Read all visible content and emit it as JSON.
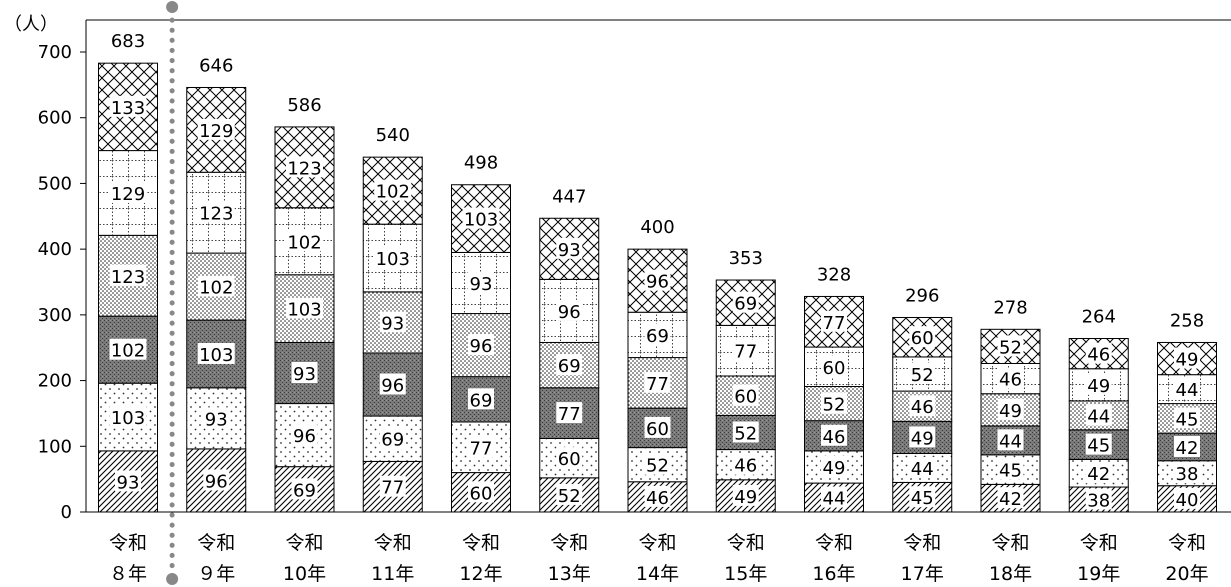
{
  "chart_data": {
    "type": "bar",
    "stacked": true,
    "unit_label": "（人）",
    "ylim": [
      0,
      700
    ],
    "yticks": [
      0,
      100,
      200,
      300,
      400,
      500,
      600,
      700
    ],
    "categories": [
      [
        "令和",
        "８年"
      ],
      [
        "令和",
        "９年"
      ],
      [
        "令和",
        "10年"
      ],
      [
        "令和",
        "11年"
      ],
      [
        "令和",
        "12年"
      ],
      [
        "令和",
        "13年"
      ],
      [
        "令和",
        "14年"
      ],
      [
        "令和",
        "15年"
      ],
      [
        "令和",
        "16年"
      ],
      [
        "令和",
        "17年"
      ],
      [
        "令和",
        "18年"
      ],
      [
        "令和",
        "19年"
      ],
      [
        "令和",
        "20年"
      ]
    ],
    "totals": [
      683,
      646,
      586,
      540,
      498,
      447,
      400,
      353,
      328,
      296,
      278,
      264,
      258
    ],
    "series": [
      {
        "pattern": "diagonal",
        "values": [
          93,
          96,
          69,
          77,
          60,
          52,
          46,
          49,
          44,
          45,
          42,
          38,
          40
        ]
      },
      {
        "pattern": "sparse-dots",
        "values": [
          103,
          93,
          96,
          69,
          77,
          60,
          52,
          46,
          49,
          44,
          45,
          42,
          38
        ]
      },
      {
        "pattern": "dark-dense",
        "values": [
          102,
          103,
          93,
          96,
          69,
          77,
          60,
          52,
          46,
          49,
          44,
          45,
          42
        ]
      },
      {
        "pattern": "dense-dots",
        "values": [
          123,
          102,
          103,
          93,
          96,
          69,
          77,
          60,
          52,
          46,
          49,
          44,
          45
        ]
      },
      {
        "pattern": "dotted-grid",
        "values": [
          129,
          123,
          102,
          103,
          93,
          96,
          69,
          77,
          60,
          52,
          46,
          49,
          44
        ]
      },
      {
        "pattern": "cross-hatch",
        "values": [
          133,
          129,
          123,
          102,
          103,
          93,
          96,
          69,
          77,
          60,
          52,
          46,
          49
        ]
      }
    ],
    "divider_after_category": 0,
    "grid": false
  }
}
